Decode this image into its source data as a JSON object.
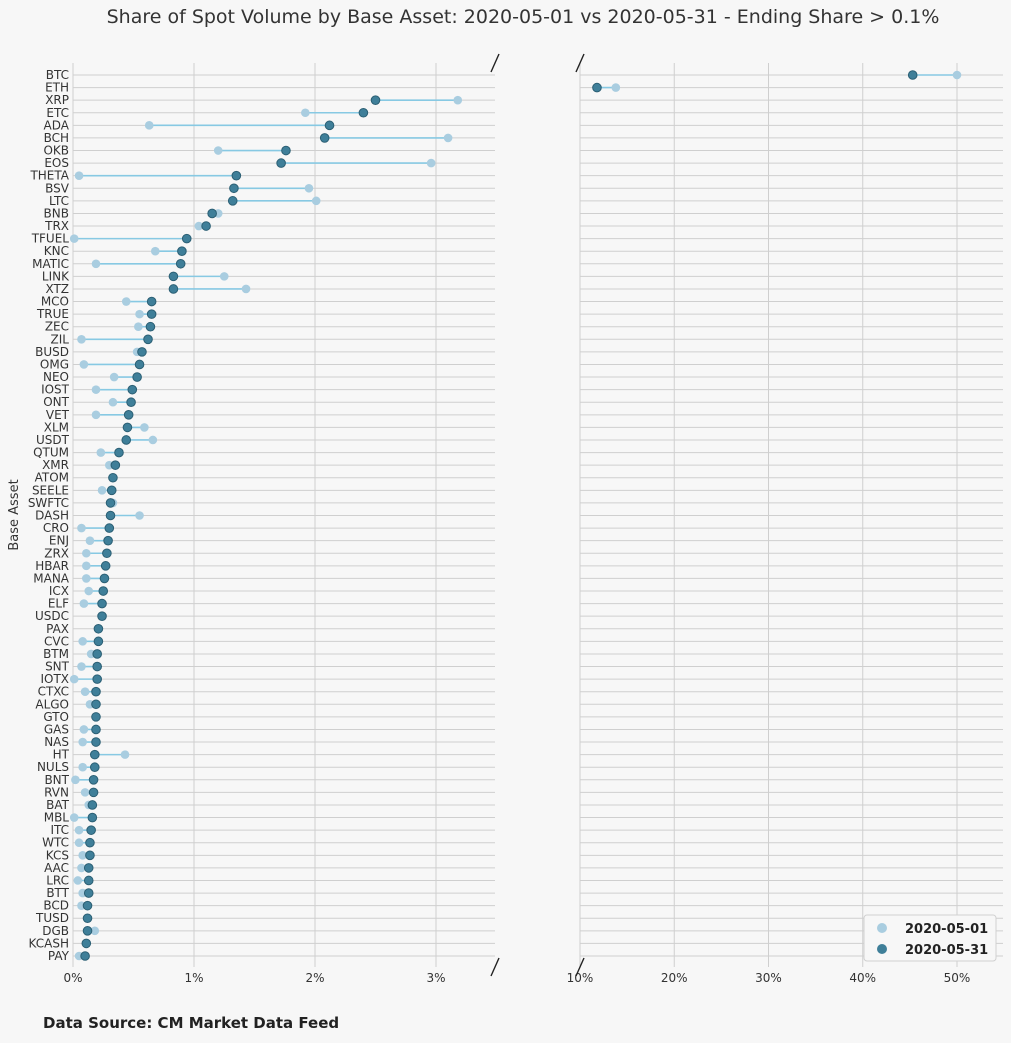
{
  "chart_data": {
    "type": "dumbbell",
    "title": "Share of Spot Volume by Base Asset: 2020-05-01 vs 2020-05-31 - Ending Share > 0.1%",
    "ylabel": "Base Asset",
    "source": "Data Source: CM Market Data Feed",
    "legend": {
      "placement": "bottom-right",
      "items": [
        {
          "label": "2020-05-01",
          "color": "#a9cde0"
        },
        {
          "label": "2020-05-31",
          "color": "#3f7f99"
        }
      ]
    },
    "colors": {
      "connector": "#87c9e3",
      "start": "#a9cde0",
      "end": "#3f7f99",
      "background": "#f7f7f7"
    },
    "axes": [
      {
        "xlim": [
          0,
          3.5
        ],
        "ticks": [
          0,
          1,
          2,
          3
        ],
        "tick_labels": [
          "0%",
          "1%",
          "2%",
          "3%"
        ]
      },
      {
        "xlim": [
          10,
          55
        ],
        "ticks": [
          10,
          20,
          30,
          40,
          50
        ],
        "tick_labels": [
          "10%",
          "20%",
          "30%",
          "40%",
          "50%"
        ]
      }
    ],
    "broken_axis": true,
    "grid": true,
    "categories": [
      "BTC",
      "ETH",
      "XRP",
      "ETC",
      "ADA",
      "BCH",
      "OKB",
      "EOS",
      "THETA",
      "BSV",
      "LTC",
      "BNB",
      "TRX",
      "TFUEL",
      "KNC",
      "MATIC",
      "LINK",
      "XTZ",
      "MCO",
      "TRUE",
      "ZEC",
      "ZIL",
      "BUSD",
      "OMG",
      "NEO",
      "IOST",
      "ONT",
      "VET",
      "XLM",
      "USDT",
      "QTUM",
      "XMR",
      "ATOM",
      "SEELE",
      "SWFTC",
      "DASH",
      "CRO",
      "ENJ",
      "ZRX",
      "HBAR",
      "MANA",
      "ICX",
      "ELF",
      "USDC",
      "PAX",
      "CVC",
      "BTM",
      "SNT",
      "IOTX",
      "CTXC",
      "ALGO",
      "GTO",
      "GAS",
      "NAS",
      "HT",
      "NULS",
      "BNT",
      "RVN",
      "BAT",
      "MBL",
      "ITC",
      "WTC",
      "KCS",
      "AAC",
      "LRC",
      "BTT",
      "BCD",
      "TUSD",
      "DGB",
      "KCASH",
      "PAY"
    ],
    "series": [
      {
        "name": "2020-05-01",
        "values": [
          50.0,
          13.8,
          3.18,
          1.92,
          0.63,
          3.1,
          1.2,
          2.96,
          0.05,
          1.95,
          2.01,
          1.2,
          1.04,
          0.01,
          0.68,
          0.19,
          1.25,
          1.43,
          0.44,
          0.55,
          0.54,
          0.07,
          0.53,
          0.09,
          0.34,
          0.19,
          0.33,
          0.19,
          0.59,
          0.66,
          0.23,
          0.3,
          0.33,
          0.24,
          0.33,
          0.55,
          0.07,
          0.14,
          0.11,
          0.11,
          0.11,
          0.13,
          0.09,
          0.24,
          0.21,
          0.08,
          0.15,
          0.07,
          0.01,
          0.1,
          0.14,
          0.19,
          0.09,
          0.08,
          0.43,
          0.08,
          0.02,
          0.1,
          0.13,
          0.01,
          0.05,
          0.05,
          0.08,
          0.07,
          0.04,
          0.08,
          0.07,
          0.12,
          0.18,
          0.11,
          0.05
        ]
      },
      {
        "name": "2020-05-31",
        "values": [
          45.3,
          11.8,
          2.5,
          2.4,
          2.12,
          2.08,
          1.76,
          1.72,
          1.35,
          1.33,
          1.32,
          1.15,
          1.1,
          0.94,
          0.9,
          0.89,
          0.83,
          0.83,
          0.65,
          0.65,
          0.64,
          0.62,
          0.57,
          0.55,
          0.53,
          0.49,
          0.48,
          0.46,
          0.45,
          0.44,
          0.38,
          0.35,
          0.33,
          0.32,
          0.31,
          0.31,
          0.3,
          0.29,
          0.28,
          0.27,
          0.26,
          0.25,
          0.24,
          0.24,
          0.21,
          0.21,
          0.2,
          0.2,
          0.2,
          0.19,
          0.19,
          0.19,
          0.19,
          0.19,
          0.18,
          0.18,
          0.17,
          0.17,
          0.16,
          0.16,
          0.15,
          0.14,
          0.14,
          0.13,
          0.13,
          0.13,
          0.12,
          0.12,
          0.12,
          0.11,
          0.1
        ]
      }
    ]
  }
}
